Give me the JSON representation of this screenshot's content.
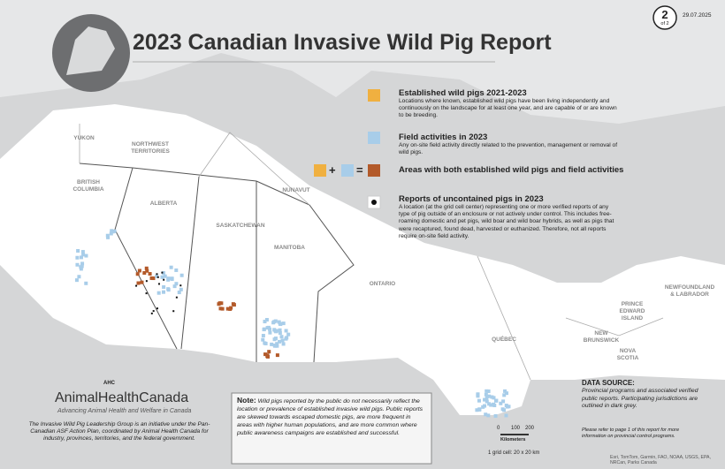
{
  "header": {
    "title": "2023 Canadian Invasive Wild Pig Report",
    "page_number": "2",
    "page_total": "of 2",
    "date": "29.07.2025"
  },
  "legend": [
    {
      "title": "Established wild pigs 2021-2023",
      "text": "Locations where known, established wild pigs have been living independently and continuously on the landscape for at least one year, and are capable of or are known to be breeding."
    },
    {
      "title": "Field activities in 2023",
      "text": "Any on-site field activity directly related to the prevention, management or removal of wild pigs."
    },
    {
      "title": "Areas with both established wild pigs and field activities",
      "text": null,
      "symbols": [
        "+",
        "="
      ]
    },
    {
      "title": "Reports of uncontained pigs in 2023",
      "text": "A location (at the grid cell center) representing one or more verified reports of any type of pig outside of an enclosure or not actively under control. This includes free-roaming domestic and pet pigs, wild boar and wild boar hybrids, as well as pigs that were recaptured, found dead, harvested or euthanized. Therefore, not all reports require on-site field activity."
    }
  ],
  "regions": [
    "YUKON",
    "NORTHWEST TERRITORIES",
    "BRITISH COLUMBIA",
    "ALBERTA",
    "SASKATCHEWAN",
    "NUNAVUT",
    "MANITOBA",
    "ONTARIO",
    "QUÉBEC",
    "PRINCE EDWARD ISLAND",
    "NEWFOUNDLAND & LABRADOR",
    "NEW BRUNSWICK",
    "NOVA SCOTIA"
  ],
  "logo": {
    "badge": "AHC",
    "name": "AnimalHealthCanada",
    "tagline": "Advancing Animal Health and Welfare in Canada",
    "description": "The Invasive Wild Pig Leadership Group is an initiative under the Pan-Canadian ASF Action Plan, coordinated by Animal Health Canada for industry, provinces, territories, and the federal government."
  },
  "note": {
    "label": "Note:",
    "text": "Wild pigs reported by the public do not necessarily reflect the location or prevalence of established invasive wild pigs. Public reports are skewed towards escaped domestic pigs, are more frequent in areas with higher human populations, and are more common where public awareness campaigns are established and successful."
  },
  "data_source": {
    "title": "DATA SOURCE:",
    "text": "Provincial programs and associated verified public reports. Participating jurisdictions are outlined in dark grey.",
    "more": "Please refer to page 1 of this report for more information on provincial control programs."
  },
  "scale": {
    "ticks": [
      0,
      100,
      200
    ],
    "unit": "Kilometers",
    "grid_cell": "1 grid cell: 20 x 20 km"
  },
  "attribution": "Esri, TomTom, Garmin, FAO, NOAA, USGS, EPA, NRCan, Parks Canada"
}
